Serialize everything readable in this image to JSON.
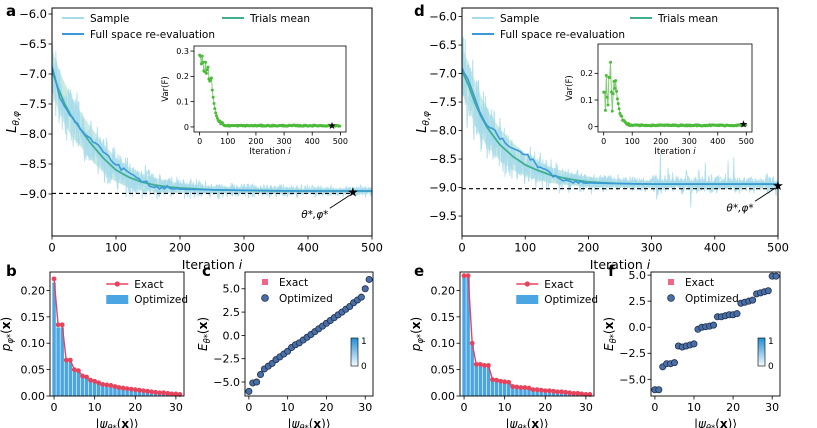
{
  "chart_data": [
    {
      "id": "a",
      "panel_label": "a",
      "type": "line",
      "xlabel": "Iteration i",
      "ylabel": "L_{θ,φ}",
      "xlim": [
        0,
        500
      ],
      "ylim": [
        -9.7,
        -5.9
      ],
      "xticks": [
        0,
        100,
        200,
        300,
        400,
        500
      ],
      "yticks": [
        -9.0,
        -8.5,
        -8.0,
        -7.5,
        -7.0,
        -6.5,
        -6.0
      ],
      "ytick_labels": [
        "−9.0",
        "−8.5",
        "−8.0",
        "−7.5",
        "−7.0",
        "−6.5",
        "−6.0"
      ],
      "legend": [
        "Sample",
        "Full space re-evaluation",
        "Trials mean"
      ],
      "legend_position": "top",
      "reference_line": {
        "y": -8.99,
        "style": "dashed",
        "color": "#000000"
      },
      "optimum": {
        "x": 470,
        "y": -8.97,
        "label": "θ*,φ*"
      },
      "series": [
        {
          "name": "Trials mean",
          "color": "#3fb08f",
          "x": [
            0,
            10,
            20,
            30,
            40,
            50,
            60,
            80,
            100,
            120,
            140,
            160,
            180,
            200,
            250,
            300,
            350,
            400,
            450,
            500
          ],
          "values": [
            -6.95,
            -7.25,
            -7.5,
            -7.7,
            -7.85,
            -8.0,
            -8.15,
            -8.4,
            -8.6,
            -8.72,
            -8.8,
            -8.85,
            -8.88,
            -8.9,
            -8.93,
            -8.94,
            -8.95,
            -8.95,
            -8.95,
            -8.95
          ],
          "band": [
            0.35,
            0.35,
            0.34,
            0.33,
            0.3,
            0.28,
            0.27,
            0.24,
            0.2,
            0.17,
            0.14,
            0.12,
            0.1,
            0.08,
            0.06,
            0.05,
            0.05,
            0.04,
            0.04,
            0.04
          ]
        },
        {
          "name": "Full space re-evaluation",
          "color": "#3a9ad9",
          "x": [
            0,
            10,
            20,
            30,
            40,
            50,
            60,
            80,
            100,
            120,
            140,
            160,
            200,
            300,
            400,
            500
          ],
          "values": [
            -6.9,
            -7.3,
            -7.55,
            -7.72,
            -7.85,
            -7.98,
            -8.08,
            -8.3,
            -8.5,
            -8.65,
            -8.78,
            -8.88,
            -8.92,
            -8.94,
            -8.95,
            -8.95
          ]
        }
      ]
    },
    {
      "id": "a_inset",
      "type": "scatter",
      "xlabel": "Iteration i",
      "ylabel": "Var(F)",
      "xlim": [
        -20,
        520
      ],
      "ylim": [
        -0.02,
        0.32
      ],
      "xticks": [
        0,
        100,
        200,
        300,
        400,
        500
      ],
      "yticks": [
        0.0,
        0.1,
        0.2,
        0.3
      ],
      "color": "#4dbb3a",
      "star": {
        "x": 470,
        "y": 0.005
      }
    },
    {
      "id": "d",
      "panel_label": "d",
      "type": "line",
      "xlabel": "Iteration i",
      "ylabel": "L_{θ,φ}",
      "xlim": [
        0,
        500
      ],
      "ylim": [
        -9.85,
        -5.85
      ],
      "xticks": [
        0,
        100,
        200,
        300,
        400,
        500
      ],
      "yticks": [
        -9.5,
        -9.0,
        -8.5,
        -8.0,
        -7.5,
        -7.0,
        -6.5,
        -6.0
      ],
      "ytick_labels": [
        "−9.5",
        "−9.0",
        "−8.5",
        "−8.0",
        "−7.5",
        "−7.0",
        "−6.5",
        "−6.0"
      ],
      "legend": [
        "Sample",
        "Full space re-evaluation",
        "Trials mean"
      ],
      "legend_position": "top",
      "reference_line": {
        "y": -9.02,
        "style": "dashed",
        "color": "#000000"
      },
      "optimum": {
        "x": 500,
        "y": -8.96,
        "label": "θ*,φ*"
      },
      "series": [
        {
          "name": "Trials mean",
          "color": "#3fb08f",
          "x": [
            0,
            10,
            20,
            30,
            40,
            50,
            60,
            80,
            100,
            120,
            140,
            160,
            180,
            200,
            250,
            300,
            350,
            400,
            450,
            500
          ],
          "values": [
            -6.95,
            -7.2,
            -7.5,
            -7.75,
            -7.95,
            -8.1,
            -8.25,
            -8.45,
            -8.6,
            -8.7,
            -8.78,
            -8.83,
            -8.87,
            -8.9,
            -8.93,
            -8.94,
            -8.94,
            -8.94,
            -8.94,
            -8.94
          ],
          "band": [
            0.4,
            0.4,
            0.38,
            0.35,
            0.33,
            0.3,
            0.28,
            0.24,
            0.2,
            0.17,
            0.14,
            0.12,
            0.1,
            0.09,
            0.07,
            0.06,
            0.05,
            0.05,
            0.05,
            0.05
          ]
        },
        {
          "name": "Full space re-evaluation",
          "color": "#3a9ad9",
          "x": [
            0,
            10,
            20,
            30,
            40,
            50,
            60,
            70,
            80,
            90,
            100,
            110,
            120,
            140,
            160,
            180,
            200,
            250,
            300,
            400,
            500
          ],
          "values": [
            -6.9,
            -7.1,
            -7.45,
            -7.7,
            -7.9,
            -8.0,
            -8.12,
            -8.22,
            -8.3,
            -8.35,
            -8.42,
            -8.5,
            -8.6,
            -8.75,
            -8.87,
            -8.9,
            -8.92,
            -8.93,
            -8.94,
            -8.94,
            -8.94
          ]
        }
      ]
    },
    {
      "id": "d_inset",
      "type": "scatter",
      "xlabel": "Iteration i",
      "ylabel": "Var(F)",
      "xlim": [
        -20,
        520
      ],
      "ylim": [
        -0.02,
        0.31
      ],
      "xticks": [
        0,
        100,
        200,
        300,
        400,
        500
      ],
      "yticks": [
        0.0,
        0.1,
        0.2
      ],
      "color": "#4dbb3a",
      "star": {
        "x": 490,
        "y": 0.01
      }
    },
    {
      "id": "b",
      "panel_label": "b",
      "type": "bar",
      "xlabel": "|ψ_θ*(x)⟩",
      "ylabel": "p_φ*(x)",
      "xlim": [
        -1,
        32
      ],
      "ylim": [
        0,
        0.235
      ],
      "xticks": [
        0,
        10,
        20,
        30
      ],
      "yticks": [
        0.0,
        0.05,
        0.1,
        0.15,
        0.2
      ],
      "ytick_labels": [
        "0.00",
        "0.05",
        "0.10",
        "0.15",
        "0.20"
      ],
      "legend": [
        "Exact",
        "Optimized"
      ],
      "exact": [
        0.222,
        0.135,
        0.135,
        0.068,
        0.068,
        0.05,
        0.048,
        0.038,
        0.036,
        0.03,
        0.028,
        0.025,
        0.022,
        0.021,
        0.02,
        0.018,
        0.016,
        0.015,
        0.014,
        0.013,
        0.012,
        0.011,
        0.01,
        0.009,
        0.008,
        0.007,
        0.006,
        0.006,
        0.005,
        0.004,
        0.004,
        0.003
      ],
      "optimized": [
        0.215,
        0.13,
        0.13,
        0.065,
        0.066,
        0.049,
        0.047,
        0.037,
        0.035,
        0.029,
        0.027,
        0.024,
        0.021,
        0.02,
        0.019,
        0.017,
        0.016,
        0.014,
        0.013,
        0.012,
        0.011,
        0.01,
        0.009,
        0.008,
        0.008,
        0.007,
        0.006,
        0.005,
        0.005,
        0.004,
        0.003,
        0.003
      ]
    },
    {
      "id": "c",
      "panel_label": "c",
      "type": "scatter",
      "xlabel": "|ψ_θ*(x)⟩",
      "ylabel": "E_θ*(x)",
      "xlim": [
        -1,
        32
      ],
      "ylim": [
        -6.5,
        6.8
      ],
      "xticks": [
        0,
        10,
        20,
        30
      ],
      "yticks": [
        -5.0,
        -2.5,
        0.0,
        2.5,
        5.0
      ],
      "ytick_labels": [
        "−5.0",
        "−2.5",
        "0.0",
        "2.5",
        "5.0"
      ],
      "legend": [
        "Exact",
        "Optimized"
      ],
      "colorbar": {
        "min": "0",
        "max": "1"
      },
      "exact": [
        -6.0,
        -5.1,
        -5.0,
        -4.2,
        -3.6,
        -3.3,
        -3.0,
        -2.6,
        -2.3,
        -2.0,
        -1.7,
        -1.3,
        -1.0,
        -0.8,
        -0.5,
        -0.2,
        0.1,
        0.4,
        0.7,
        1.0,
        1.3,
        1.6,
        1.9,
        2.2,
        2.5,
        2.8,
        3.1,
        3.5,
        3.8,
        4.1,
        5.0,
        6.0
      ],
      "optimized": [
        -6.0,
        -5.1,
        -5.0,
        -4.2,
        -3.6,
        -3.3,
        -3.0,
        -2.6,
        -2.3,
        -2.0,
        -1.7,
        -1.3,
        -1.0,
        -0.8,
        -0.5,
        -0.2,
        0.1,
        0.4,
        0.7,
        1.0,
        1.3,
        1.6,
        1.9,
        2.2,
        2.5,
        2.8,
        3.1,
        3.5,
        3.8,
        4.1,
        5.0,
        6.0
      ]
    },
    {
      "id": "e",
      "panel_label": "e",
      "type": "bar",
      "xlabel": "|ψ_θ*(x)⟩",
      "ylabel": "p_φ*(x)",
      "xlim": [
        -1,
        32
      ],
      "ylim": [
        0,
        0.235
      ],
      "xticks": [
        0,
        10,
        20,
        30
      ],
      "yticks": [
        0.0,
        0.05,
        0.1,
        0.15,
        0.2
      ],
      "ytick_labels": [
        "0.00",
        "0.05",
        "0.10",
        "0.15",
        "0.20"
      ],
      "legend": [
        "Exact",
        "Optimized"
      ],
      "exact": [
        0.228,
        0.228,
        0.1,
        0.06,
        0.06,
        0.058,
        0.058,
        0.031,
        0.03,
        0.028,
        0.027,
        0.026,
        0.018,
        0.017,
        0.016,
        0.016,
        0.015,
        0.012,
        0.012,
        0.011,
        0.01,
        0.01,
        0.009,
        0.008,
        0.008,
        0.007,
        0.006,
        0.005,
        0.005,
        0.004,
        0.003,
        0.003
      ],
      "optimized": [
        0.225,
        0.225,
        0.098,
        0.058,
        0.059,
        0.057,
        0.057,
        0.03,
        0.029,
        0.027,
        0.026,
        0.025,
        0.017,
        0.016,
        0.016,
        0.015,
        0.014,
        0.012,
        0.011,
        0.011,
        0.01,
        0.009,
        0.009,
        0.008,
        0.007,
        0.006,
        0.006,
        0.005,
        0.004,
        0.004,
        0.003,
        0.003
      ]
    },
    {
      "id": "f",
      "panel_label": "f",
      "type": "scatter",
      "xlabel": "|ψ_θ*(x)⟩",
      "ylabel": "E_θ*(x)",
      "xlim": [
        -1,
        32
      ],
      "ylim": [
        -6.6,
        5.3
      ],
      "xticks": [
        0,
        10,
        20,
        30
      ],
      "yticks": [
        -5.0,
        -2.5,
        0.0,
        2.5,
        5.0
      ],
      "ytick_labels": [
        "−5.0",
        "−2.5",
        "0.0",
        "2.5",
        "5.0"
      ],
      "legend": [
        "Exact",
        "Optimized"
      ],
      "colorbar": {
        "min": "0",
        "max": "1"
      },
      "exact": [
        -6.0,
        -6.0,
        -3.8,
        -3.5,
        -3.5,
        -3.4,
        -1.8,
        -1.9,
        -1.8,
        -1.7,
        -1.6,
        -0.2,
        0.0,
        0.05,
        0.1,
        0.2,
        1.0,
        1.0,
        1.1,
        1.2,
        1.2,
        1.3,
        2.3,
        2.4,
        2.5,
        2.6,
        3.2,
        3.3,
        3.4,
        3.5,
        4.9,
        4.9
      ],
      "optimized": [
        -6.0,
        -6.0,
        -3.8,
        -3.5,
        -3.5,
        -3.4,
        -1.8,
        -1.9,
        -1.8,
        -1.7,
        -1.6,
        -0.2,
        0.0,
        0.05,
        0.1,
        0.2,
        1.0,
        1.0,
        1.1,
        1.2,
        1.2,
        1.3,
        2.3,
        2.4,
        2.5,
        2.6,
        3.2,
        3.3,
        3.4,
        3.5,
        4.9,
        4.9
      ]
    }
  ]
}
